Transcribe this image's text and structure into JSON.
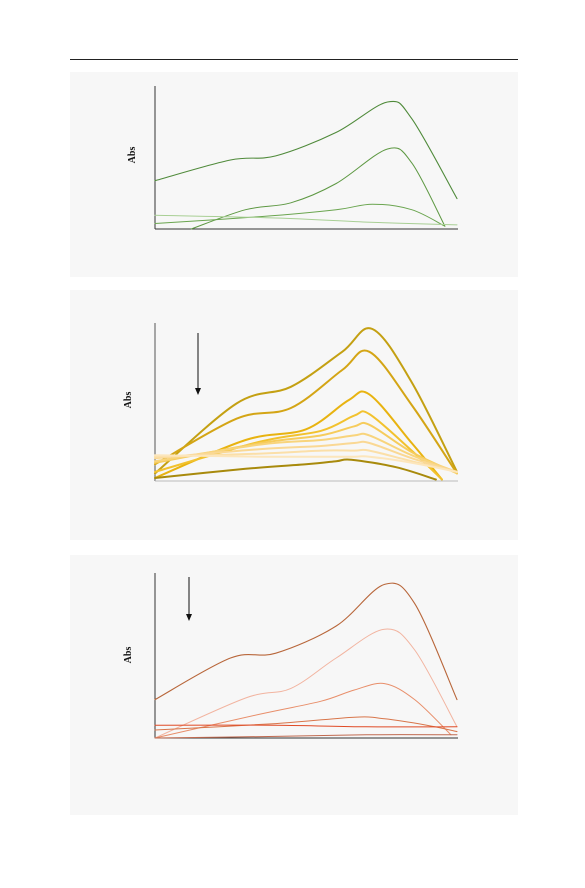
{
  "chart_data": [
    {
      "type": "line",
      "ylabel": "Abs",
      "xlabel": "",
      "grid": false,
      "legend": "none",
      "arrow": false,
      "series": [
        {
          "color": "#4f8a3a",
          "width": 1.1,
          "points": [
            [
              0,
              35
            ],
            [
              0.25,
              50
            ],
            [
              0.4,
              53
            ],
            [
              0.6,
              70
            ],
            [
              0.77,
              92
            ],
            [
              0.85,
              80
            ],
            [
              1,
              22
            ]
          ]
        },
        {
          "color": "#5d9842",
          "width": 1.0,
          "points": [
            [
              0.12,
              0
            ],
            [
              0.3,
              14
            ],
            [
              0.45,
              19
            ],
            [
              0.6,
              33
            ],
            [
              0.77,
              58
            ],
            [
              0.85,
              48
            ],
            [
              0.96,
              2
            ]
          ]
        },
        {
          "color": "#6aa54f",
          "width": 1.0,
          "points": [
            [
              0,
              4
            ],
            [
              0.35,
              9
            ],
            [
              0.6,
              14
            ],
            [
              0.72,
              18
            ],
            [
              0.85,
              14
            ],
            [
              0.96,
              2
            ]
          ]
        },
        {
          "color": "#a8cf94",
          "width": 1.0,
          "points": [
            [
              0,
              10
            ],
            [
              0.4,
              8
            ],
            [
              0.7,
              5
            ],
            [
              1,
              3
            ]
          ]
        }
      ]
    },
    {
      "type": "line",
      "ylabel": "Abs",
      "xlabel": "",
      "grid": false,
      "legend": "none",
      "arrow": true,
      "series": [
        {
          "color": "#c4a012",
          "width": 2.0,
          "points": [
            [
              0,
              5
            ],
            [
              0.27,
              51
            ],
            [
              0.45,
              62
            ],
            [
              0.62,
              85
            ],
            [
              0.72,
              100
            ],
            [
              0.85,
              65
            ],
            [
              1,
              6
            ]
          ]
        },
        {
          "color": "#d4a515",
          "width": 2.0,
          "points": [
            [
              0,
              11
            ],
            [
              0.27,
              41
            ],
            [
              0.45,
              48
            ],
            [
              0.62,
              73
            ],
            [
              0.71,
              85
            ],
            [
              0.85,
              50
            ],
            [
              1,
              5
            ]
          ]
        },
        {
          "color": "#e8b310",
          "width": 2.0,
          "points": [
            [
              0,
              2
            ],
            [
              0.3,
              27
            ],
            [
              0.5,
              34
            ],
            [
              0.64,
              53
            ],
            [
              0.71,
              57
            ],
            [
              0.85,
              25
            ],
            [
              0.95,
              1
            ]
          ]
        },
        {
          "color": "#f2c22e",
          "width": 2.0,
          "points": [
            [
              0,
              6
            ],
            [
              0.35,
              26
            ],
            [
              0.55,
              33
            ],
            [
              0.66,
              43
            ],
            [
              0.71,
              44
            ],
            [
              0.85,
              20
            ],
            [
              0.95,
              1
            ]
          ]
        },
        {
          "color": "#f6cc5c",
          "width": 2.0,
          "points": [
            [
              0,
              12
            ],
            [
              0.35,
              25
            ],
            [
              0.55,
              30
            ],
            [
              0.66,
              36
            ],
            [
              0.71,
              37
            ],
            [
              0.85,
              19
            ],
            [
              1,
              5
            ]
          ]
        },
        {
          "color": "#f8d47c",
          "width": 2.0,
          "points": [
            [
              0,
              13
            ],
            [
              0.35,
              24
            ],
            [
              0.55,
              27
            ],
            [
              0.66,
              30
            ],
            [
              0.71,
              30
            ],
            [
              0.85,
              17
            ],
            [
              1,
              6
            ]
          ]
        },
        {
          "color": "#fad894",
          "width": 2.0,
          "points": [
            [
              0,
              15
            ],
            [
              0.35,
              21
            ],
            [
              0.55,
              23
            ],
            [
              0.66,
              25
            ],
            [
              0.71,
              25
            ],
            [
              0.85,
              15
            ],
            [
              1,
              6
            ]
          ]
        },
        {
          "color": "#fbdfa8",
          "width": 2.0,
          "points": [
            [
              0,
              16
            ],
            [
              0.35,
              18
            ],
            [
              0.55,
              20
            ],
            [
              0.66,
              20
            ],
            [
              0.71,
              20
            ],
            [
              0.85,
              13
            ],
            [
              1,
              6
            ]
          ]
        },
        {
          "color": "#fce6bc",
          "width": 2.0,
          "points": [
            [
              0,
              17
            ],
            [
              0.35,
              16
            ],
            [
              0.55,
              16
            ],
            [
              0.66,
              16
            ],
            [
              0.71,
              16
            ],
            [
              0.85,
              12
            ],
            [
              1,
              6
            ]
          ]
        },
        {
          "color": "#a88a0c",
          "width": 2.0,
          "points": [
            [
              0,
              2
            ],
            [
              0.3,
              8
            ],
            [
              0.5,
              11
            ],
            [
              0.6,
              13
            ],
            [
              0.65,
              14
            ],
            [
              0.8,
              9
            ],
            [
              0.93,
              1
            ]
          ]
        }
      ]
    },
    {
      "type": "line",
      "ylabel": "Abs",
      "xlabel": "",
      "grid": false,
      "legend": "none",
      "arrow": true,
      "series": [
        {
          "color": "#b8663a",
          "width": 1.1,
          "points": [
            [
              0,
              24
            ],
            [
              0.25,
              50
            ],
            [
              0.4,
              53
            ],
            [
              0.6,
              70
            ],
            [
              0.76,
              96
            ],
            [
              0.86,
              84
            ],
            [
              1,
              24
            ]
          ]
        },
        {
          "color": "#f2b4a0",
          "width": 1.0,
          "points": [
            [
              0,
              0
            ],
            [
              0.3,
              25
            ],
            [
              0.45,
              31
            ],
            [
              0.6,
              50
            ],
            [
              0.76,
              68
            ],
            [
              0.86,
              55
            ],
            [
              1,
              7
            ]
          ]
        },
        {
          "color": "#e88e6a",
          "width": 1.0,
          "points": [
            [
              0,
              0
            ],
            [
              0.35,
              15
            ],
            [
              0.55,
              23
            ],
            [
              0.66,
              30
            ],
            [
              0.76,
              34
            ],
            [
              0.86,
              24
            ],
            [
              0.98,
              2
            ]
          ]
        },
        {
          "color": "#d8754a",
          "width": 1.0,
          "points": [
            [
              0,
              5
            ],
            [
              0.4,
              9
            ],
            [
              0.66,
              13
            ],
            [
              0.76,
              12
            ],
            [
              0.9,
              8
            ],
            [
              1,
              4
            ]
          ]
        },
        {
          "color": "#e04a25",
          "width": 1.0,
          "points": [
            [
              0,
              8
            ],
            [
              0.4,
              8
            ],
            [
              0.7,
              7
            ],
            [
              1,
              7
            ]
          ]
        },
        {
          "color": "#c06a50",
          "width": 1.0,
          "points": [
            [
              0,
              0
            ],
            [
              0.4,
              1
            ],
            [
              0.7,
              2
            ],
            [
              1,
              2
            ]
          ]
        }
      ]
    }
  ]
}
